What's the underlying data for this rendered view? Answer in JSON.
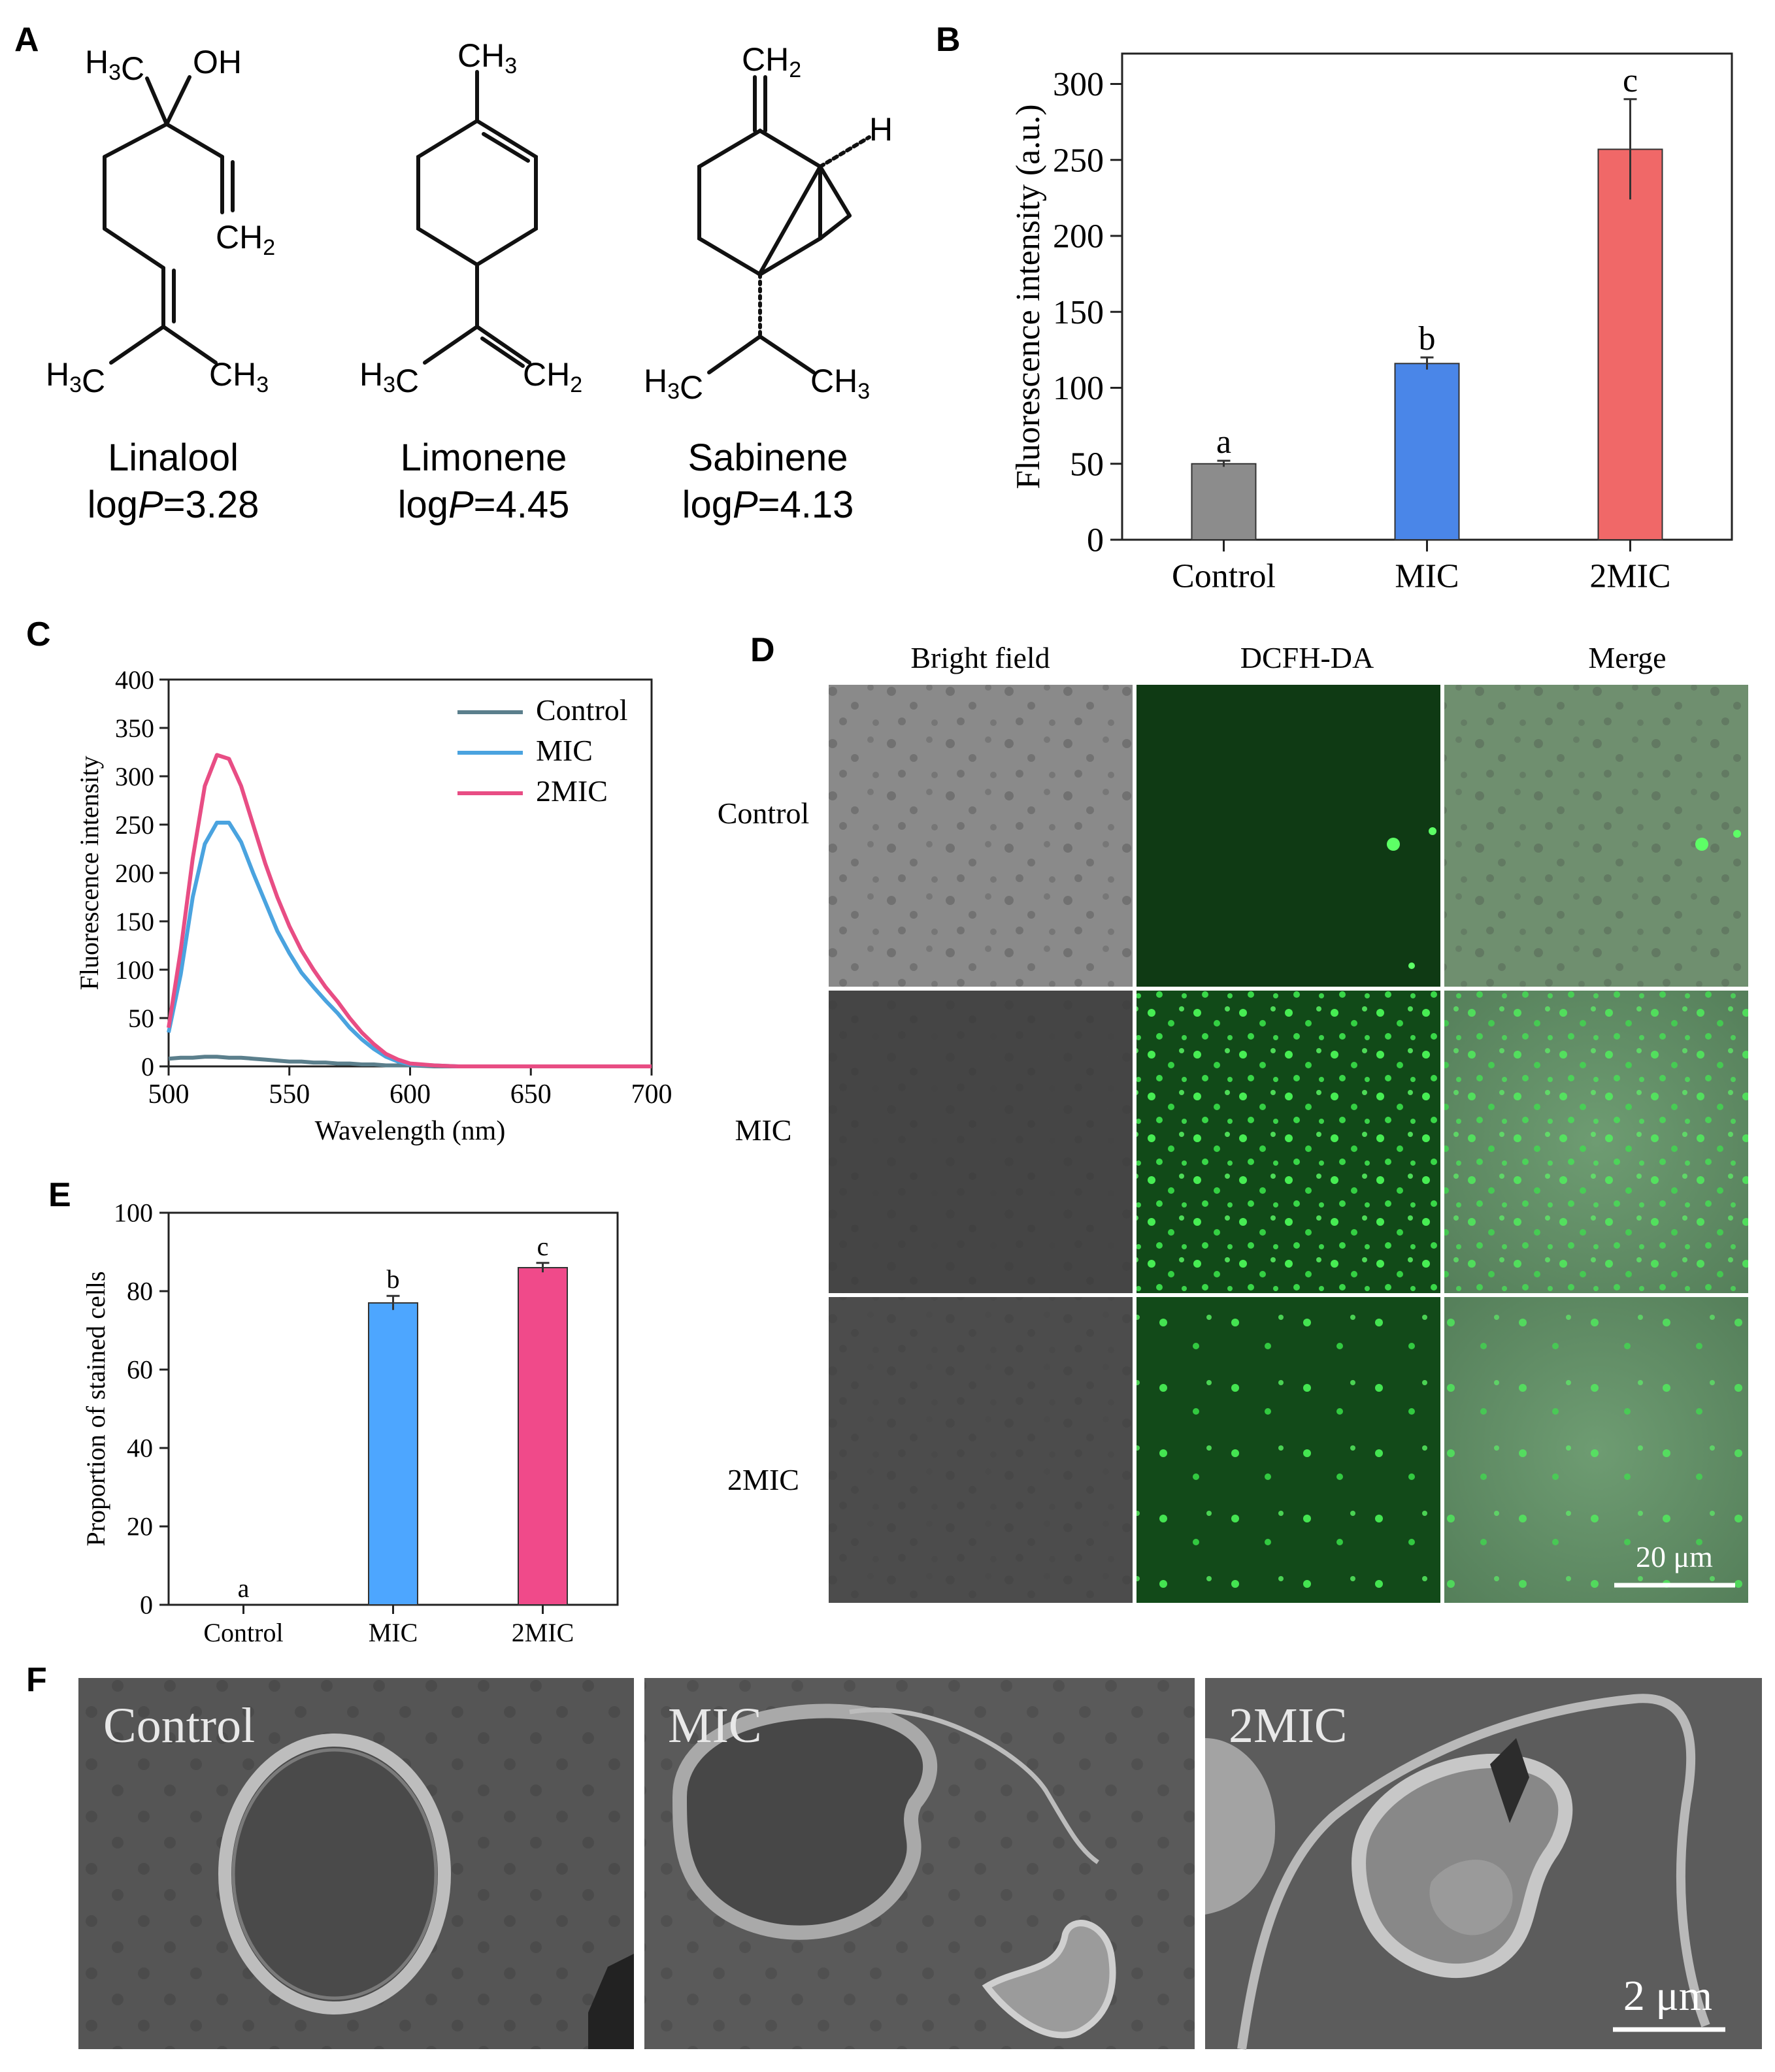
{
  "panel_labels": {
    "a": "A",
    "b": "B",
    "c": "C",
    "d": "D",
    "e": "E",
    "f": "F"
  },
  "molecules": [
    {
      "name": "Linalool",
      "logp_prefix": "log",
      "logp_p": "P",
      "logp_value": "=3.28",
      "atoms": {
        "ch3_left": "H3C",
        "oh": "OH",
        "ch2": "CH2",
        "bottom_left": "H3C",
        "bottom_right": "CH3"
      }
    },
    {
      "name": "Limonene",
      "logp_prefix": "log",
      "logp_p": "P",
      "logp_value": "=4.45",
      "atoms": {
        "ch3_top": "CH3",
        "bottom_left": "H3C",
        "bottom_right": "CH2"
      }
    },
    {
      "name": "Sabinene",
      "logp_prefix": "log",
      "logp_p": "P",
      "logp_value": "=4.13",
      "atoms": {
        "ch2_top": "CH2",
        "h": "H",
        "bottom_left": "H3C",
        "bottom_right": "CH3"
      }
    }
  ],
  "chart_data": [
    {
      "id": "B",
      "type": "bar",
      "categories": [
        "Control",
        "MIC",
        "2MIC"
      ],
      "values": [
        50,
        116,
        257
      ],
      "errors": [
        2,
        4,
        33
      ],
      "sig_letters": [
        "a",
        "b",
        "c"
      ],
      "colors": [
        "#8c8c8c",
        "#4a86e8",
        "#f06868"
      ],
      "ylabel": "Fluorescence intensity (a.u.)",
      "ylim": [
        0,
        320
      ],
      "yticks": [
        0,
        50,
        100,
        150,
        200,
        250,
        300
      ]
    },
    {
      "id": "C",
      "type": "line",
      "xlabel": "Wavelength (nm)",
      "ylabel": "Fluorescence intensity",
      "xlim": [
        500,
        700
      ],
      "ylim": [
        0,
        400
      ],
      "xticks": [
        500,
        550,
        600,
        650,
        700
      ],
      "yticks": [
        0,
        50,
        100,
        150,
        200,
        250,
        300,
        350,
        400
      ],
      "x": [
        500,
        505,
        510,
        515,
        520,
        525,
        530,
        535,
        540,
        545,
        550,
        555,
        560,
        565,
        570,
        575,
        580,
        585,
        590,
        595,
        600,
        610,
        620,
        640,
        660,
        680,
        700
      ],
      "series": [
        {
          "name": "Control",
          "color": "#5b7f8c",
          "values": [
            8,
            9,
            9,
            10,
            10,
            9,
            9,
            8,
            7,
            6,
            5,
            5,
            4,
            4,
            3,
            3,
            2,
            2,
            1,
            1,
            1,
            0,
            0,
            0,
            0,
            0,
            0
          ]
        },
        {
          "name": "MIC",
          "color": "#4aa3df",
          "values": [
            35,
            95,
            175,
            230,
            252,
            252,
            232,
            200,
            170,
            140,
            117,
            97,
            82,
            68,
            55,
            40,
            28,
            18,
            10,
            5,
            2,
            1,
            0,
            0,
            0,
            0,
            0
          ]
        },
        {
          "name": "2MIC",
          "color": "#e84d84",
          "values": [
            40,
            120,
            215,
            290,
            322,
            318,
            290,
            250,
            210,
            175,
            145,
            120,
            100,
            82,
            67,
            50,
            35,
            23,
            13,
            7,
            3,
            1,
            0,
            0,
            0,
            0,
            0
          ]
        }
      ],
      "legend": "top-right"
    },
    {
      "id": "E",
      "type": "bar",
      "categories": [
        "Control",
        "MIC",
        "2MIC"
      ],
      "values": [
        0,
        77,
        86
      ],
      "errors": [
        0,
        1.8,
        1.2
      ],
      "sig_letters": [
        "a",
        "b",
        "c"
      ],
      "colors": [
        "#8c8c8c",
        "#4da6ff",
        "#f04a8a"
      ],
      "ylabel": "Proportion of stained cells",
      "ylim": [
        0,
        100
      ],
      "yticks": [
        0,
        20,
        40,
        60,
        80,
        100
      ]
    }
  ],
  "microscopy": {
    "columns": [
      "Bright field",
      "DCFH-DA",
      "Merge"
    ],
    "rows": [
      "Control",
      "MIC",
      "2MIC"
    ],
    "scale_bar": "20 μm"
  },
  "sem": {
    "labels": [
      "Control",
      "MIC",
      "2MIC"
    ],
    "scale_bar": "2 μm"
  }
}
